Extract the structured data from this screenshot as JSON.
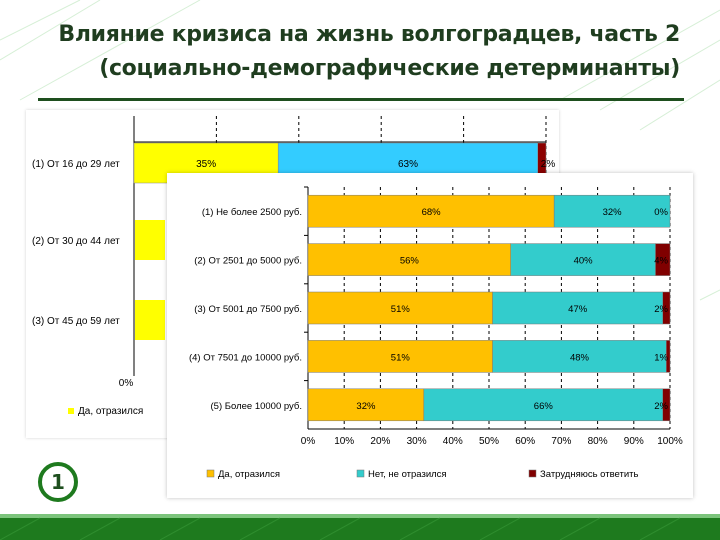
{
  "slide": {
    "title_line1": "Влияние кризиса на жизнь волгоградцев, часть 2",
    "title_line2": "(социально-демографические детерминанты)",
    "page_number": "1",
    "colors": {
      "green": "#1e7a1e",
      "dark_green": "#1e4f1e"
    }
  },
  "chart_data": [
    {
      "type": "bar",
      "orientation": "horizontal",
      "stacked": true,
      "partially_occluded": true,
      "categories": [
        "(1) От 16 до 29 лет",
        "(2) От 30 до 44 лет",
        "(3) От 45 до 59 лет"
      ],
      "series": [
        {
          "name": "Да, отразился",
          "color": "#ffff00",
          "values": [
            35,
            null,
            null
          ],
          "labels": [
            "35%",
            "",
            ""
          ]
        },
        {
          "name": "",
          "color": "#33ccff",
          "values": [
            63,
            null,
            null
          ],
          "labels": [
            "63%",
            "",
            ""
          ]
        },
        {
          "name": "",
          "color": "#8b0000",
          "values": [
            2,
            null,
            null
          ],
          "labels": [
            "2%",
            "",
            ""
          ]
        }
      ],
      "xlim": [
        0,
        100
      ],
      "tick_labels": [
        "0%"
      ],
      "grid": true
    },
    {
      "type": "bar",
      "orientation": "horizontal",
      "stacked": true,
      "categories": [
        "(1) Не более 2500 руб.",
        "(2) От 2501 до 5000 руб.",
        "(3) От 5001 до 7500 руб.",
        "(4) От 7501 до 10000 руб.",
        "(5) Более 10000 руб."
      ],
      "series": [
        {
          "name": "Да, отразился",
          "color": "#ffc000",
          "values": [
            68,
            56,
            51,
            51,
            32
          ],
          "labels": [
            "68%",
            "56%",
            "51%",
            "51%",
            "32%"
          ]
        },
        {
          "name": "Нет, не отразился",
          "color": "#33cccc",
          "values": [
            32,
            40,
            47,
            48,
            66
          ],
          "labels": [
            "32%",
            "40%",
            "47%",
            "48%",
            "66%"
          ]
        },
        {
          "name": "Затрудняюсь ответить",
          "color": "#800000",
          "values": [
            0,
            4,
            2,
            1,
            2
          ],
          "labels": [
            "0%",
            "4%",
            "2%",
            "1%",
            "2%"
          ]
        }
      ],
      "xlim": [
        0,
        100
      ],
      "tick_labels": [
        "0%",
        "10%",
        "20%",
        "30%",
        "40%",
        "50%",
        "60%",
        "70%",
        "80%",
        "90%",
        "100%"
      ],
      "grid": true,
      "legend_position": "bottom"
    }
  ]
}
